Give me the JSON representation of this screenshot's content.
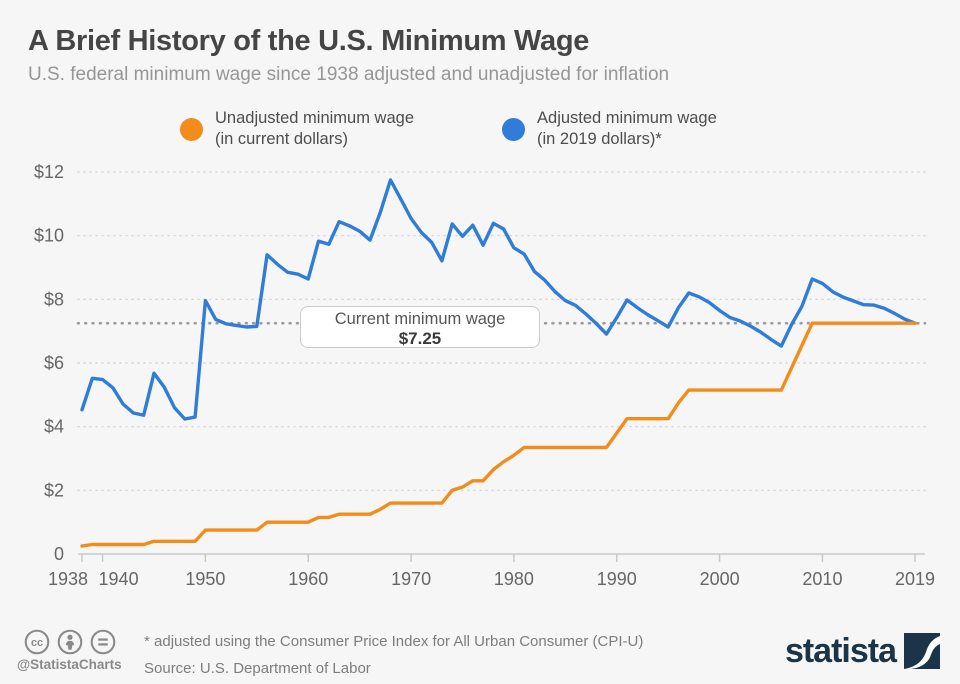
{
  "header": {
    "title": "A Brief History of the U.S. Minimum Wage",
    "subtitle": "U.S. federal minimum wage since 1938 adjusted and unadjusted for inflation"
  },
  "legend": {
    "items": [
      {
        "line1": "Unadjusted minimum wage",
        "line2": "(in current dollars)",
        "color": "#f28c1b"
      },
      {
        "line1": "Adjusted minimum wage",
        "line2": "(in 2019 dollars)*",
        "color": "#2f7dd8"
      }
    ]
  },
  "annotation": {
    "label": "Current minimum wage",
    "value": "$7.25"
  },
  "chart_data": {
    "type": "line",
    "xlabel": "",
    "ylabel": "",
    "xlim": [
      1938,
      2019
    ],
    "ylim": [
      0,
      12
    ],
    "grid": "horizontal dotted",
    "legend_position": "top",
    "x_ticks": [
      1938,
      1940,
      1950,
      1960,
      1970,
      1980,
      1990,
      2000,
      2010,
      2019
    ],
    "y_ticks": [
      {
        "value": 12,
        "label": "$12"
      },
      {
        "value": 10,
        "label": "$10"
      },
      {
        "value": 8,
        "label": "$8"
      },
      {
        "value": 6,
        "label": "$6"
      },
      {
        "value": 4,
        "label": "$4"
      },
      {
        "value": 2,
        "label": "$2"
      },
      {
        "value": 0,
        "label": "0"
      }
    ],
    "reference": {
      "value": 7.25,
      "label": "Current minimum wage $7.25"
    },
    "years": [
      1938,
      1939,
      1940,
      1941,
      1942,
      1943,
      1944,
      1945,
      1946,
      1947,
      1948,
      1949,
      1950,
      1951,
      1952,
      1953,
      1954,
      1955,
      1956,
      1957,
      1958,
      1959,
      1960,
      1961,
      1962,
      1963,
      1964,
      1965,
      1966,
      1967,
      1968,
      1969,
      1970,
      1971,
      1972,
      1973,
      1974,
      1975,
      1976,
      1977,
      1978,
      1979,
      1980,
      1981,
      1982,
      1983,
      1984,
      1985,
      1986,
      1987,
      1988,
      1989,
      1990,
      1991,
      1992,
      1993,
      1994,
      1995,
      1996,
      1997,
      1998,
      1999,
      2000,
      2001,
      2002,
      2003,
      2004,
      2005,
      2006,
      2007,
      2008,
      2009,
      2010,
      2011,
      2012,
      2013,
      2014,
      2015,
      2016,
      2017,
      2018,
      2019
    ],
    "series": [
      {
        "id": "unadjusted",
        "name": "Unadjusted minimum wage (in current dollars)",
        "color": "#f28c1b",
        "values": [
          0.25,
          0.3,
          0.3,
          0.3,
          0.3,
          0.3,
          0.3,
          0.4,
          0.4,
          0.4,
          0.4,
          0.4,
          0.75,
          0.75,
          0.75,
          0.75,
          0.75,
          0.75,
          1.0,
          1.0,
          1.0,
          1.0,
          1.0,
          1.15,
          1.15,
          1.25,
          1.25,
          1.25,
          1.25,
          1.4,
          1.6,
          1.6,
          1.6,
          1.6,
          1.6,
          1.6,
          2.0,
          2.1,
          2.3,
          2.3,
          2.65,
          2.9,
          3.1,
          3.35,
          3.35,
          3.35,
          3.35,
          3.35,
          3.35,
          3.35,
          3.35,
          3.35,
          3.8,
          4.25,
          4.25,
          4.25,
          4.25,
          4.25,
          4.75,
          5.15,
          5.15,
          5.15,
          5.15,
          5.15,
          5.15,
          5.15,
          5.15,
          5.15,
          5.15,
          5.85,
          6.55,
          7.25,
          7.25,
          7.25,
          7.25,
          7.25,
          7.25,
          7.25,
          7.25,
          7.25,
          7.25,
          7.25
        ]
      },
      {
        "id": "adjusted",
        "name": "Adjusted minimum wage (in 2019 dollars)*",
        "color": "#2f7dd8",
        "values": [
          4.53,
          5.52,
          5.48,
          5.22,
          4.71,
          4.43,
          4.36,
          5.68,
          5.24,
          4.59,
          4.24,
          4.3,
          7.96,
          7.37,
          7.23,
          7.18,
          7.13,
          7.15,
          9.4,
          9.1,
          8.85,
          8.79,
          8.64,
          9.83,
          9.73,
          10.44,
          10.31,
          10.14,
          9.86,
          10.72,
          11.75,
          11.15,
          10.54,
          10.1,
          9.79,
          9.21,
          10.37,
          9.98,
          10.33,
          9.7,
          10.39,
          10.21,
          9.62,
          9.42,
          8.87,
          8.6,
          8.24,
          7.96,
          7.81,
          7.54,
          7.24,
          6.91,
          7.43,
          7.98,
          7.74,
          7.52,
          7.33,
          7.13,
          7.74,
          8.2,
          8.08,
          7.9,
          7.65,
          7.43,
          7.32,
          7.16,
          6.97,
          6.74,
          6.53,
          7.21,
          7.78,
          8.64,
          8.5,
          8.24,
          8.07,
          7.95,
          7.83,
          7.82,
          7.72,
          7.56,
          7.38,
          7.25
        ]
      }
    ]
  },
  "footer": {
    "footnote": "* adjusted using the Consumer Price Index for All Urban Consumer (CPI-U)",
    "source": "Source: U.S. Department of Labor",
    "handle": "@StatistaCharts",
    "brand": "statista"
  },
  "colors": {
    "background": "#f6f6f6",
    "grid": "#d4d4d4",
    "ref": "#9b9b9b",
    "axis": "#c8c8c8",
    "axis_text": "#666666",
    "footer_gray": "#8a8a8a",
    "brand_navy": "#1b3448"
  }
}
